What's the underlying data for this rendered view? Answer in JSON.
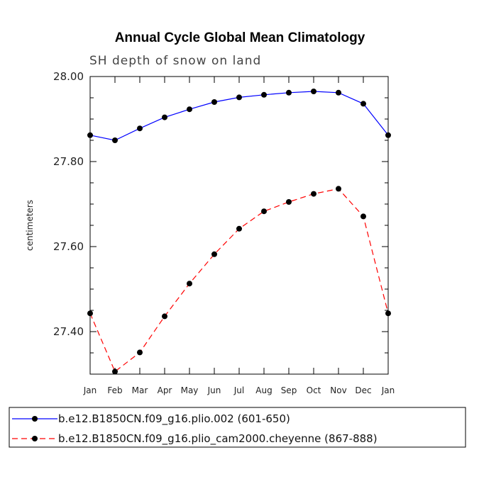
{
  "chart_data": {
    "type": "line",
    "title": "Annual Cycle Global Mean Climatology",
    "subtitle": "SH depth of snow on land",
    "xlabel": "",
    "ylabel": "centimeters",
    "categories": [
      "Jan",
      "Feb",
      "Mar",
      "Apr",
      "May",
      "Jun",
      "Jul",
      "Aug",
      "Sep",
      "Oct",
      "Nov",
      "Dec",
      "Jan"
    ],
    "ylim": [
      27.3,
      28.0
    ],
    "yticks": [
      27.4,
      27.6,
      27.8,
      28.0
    ],
    "ytick_labels": [
      "27.40",
      "27.60",
      "27.80",
      "28.00"
    ],
    "minor_ytick_step": 0.05,
    "legend_position": "bottom",
    "series": [
      {
        "name": "b.e12.B1850CN.f09_g16.plio.002 (601-650)",
        "color": "#0000ff",
        "dash": "solid",
        "values": [
          27.862,
          27.85,
          27.878,
          27.904,
          27.923,
          27.94,
          27.951,
          27.957,
          27.962,
          27.965,
          27.962,
          27.936,
          27.862
        ]
      },
      {
        "name": "b.e12.B1850CN.f09_g16.plio_cam2000.cheyenne (867-888)",
        "color": "#ff0000",
        "dash": "dashed",
        "values": [
          27.443,
          27.306,
          27.351,
          27.436,
          27.513,
          27.582,
          27.642,
          27.683,
          27.705,
          27.724,
          27.736,
          27.671,
          27.443
        ]
      }
    ]
  }
}
